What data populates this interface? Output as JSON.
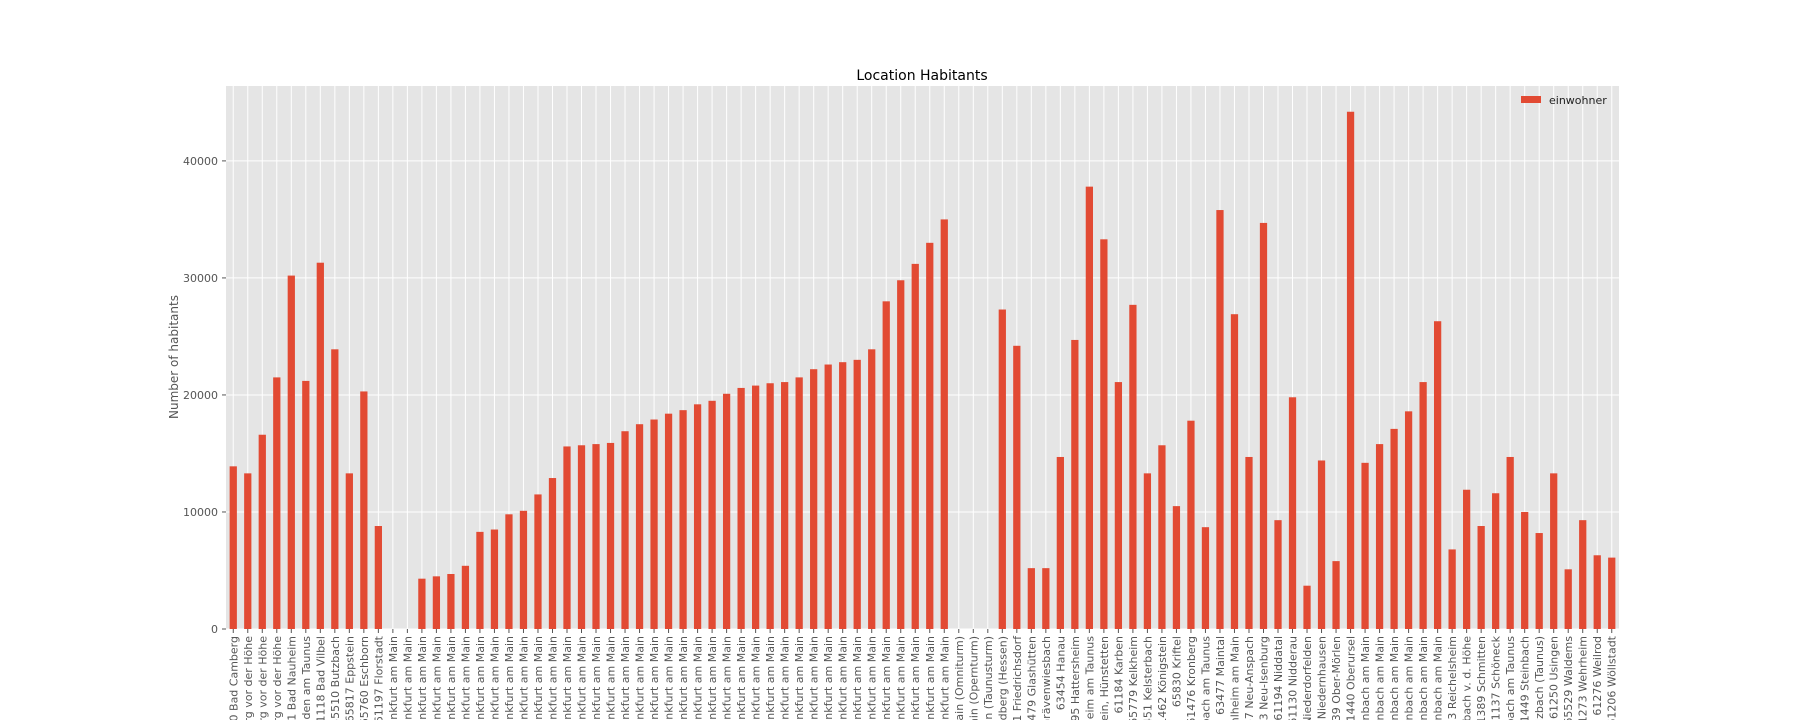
{
  "chart_data": {
    "type": "bar",
    "title": "Location Habitants",
    "ylabel": "Number of habitants",
    "categories": [
      "20 Bad Camberg",
      "urg vor der Höhe",
      "urg vor der Höhe",
      "urg vor der Höhe",
      "31 Bad Nauheim",
      "den am Taunus",
      "61118 Bad Vilbel",
      "35510 Butzbach",
      "65817 Eppstein",
      "65760 Eschborn",
      "61197 Florstadt",
      "ankfurt am Main",
      "ankfurt am Main",
      "ankfurt am Main",
      "ankfurt am Main",
      "ankfurt am Main",
      "ankfurt am Main",
      "ankfurt am Main",
      "ankfurt am Main",
      "ankfurt am Main",
      "ankfurt am Main",
      "ankfurt am Main",
      "ankfurt am Main",
      "ankfurt am Main",
      "ankfurt am Main",
      "ankfurt am Main",
      "ankfurt am Main",
      "ankfurt am Main",
      "ankfurt am Main",
      "ankfurt am Main",
      "ankfurt am Main",
      "ankfurt am Main",
      "ankfurt am Main",
      "ankfurt am Main",
      "ankfurt am Main",
      "ankfurt am Main",
      "ankfurt am Main",
      "ankfurt am Main",
      "ankfurt am Main",
      "ankfurt am Main",
      "ankfurt am Main",
      "ankfurt am Main",
      "ankfurt am Main",
      "ankfurt am Main",
      "ankfurt am Main",
      "ankfurt am Main",
      "ankfurt am Main",
      "ankfurt am Main",
      "ankfurt am Main",
      "ankfurt am Main",
      "Main (Omniturm)",
      "ain (Opernturm)",
      "ain (Taunusturm)",
      "edberg (Hessen)",
      "31 Friedrichsdorf",
      "1479 Glashütten",
      "Grävenwiesbach",
      "63454 Hanau",
      "795 Hattersheim",
      "heim am Taunus",
      "tein, Hünstetten",
      "61184 Karben",
      "65779 Kelkheim",
      "451 Kelsterbach",
      "1462 Königstein",
      "65830 Kriftel",
      "61476 Kronberg",
      "bach am Taunus",
      "63477 Maintal",
      "hlheim am Main",
      "67 Neu-Anspach",
      "63 Neu-Isenburg",
      "61194 Niddatal",
      "61130 Nidderau",
      "Niederdorfelden",
      "7 Niedernhausen",
      "239 Ober-Mörlen",
      "61440 Oberursel",
      "fenbach am Main",
      "fenbach am Main",
      "fenbach am Main",
      "fenbach am Main",
      "fenbach am Main",
      "fenbach am Main",
      "03 Reichelsheim",
      "sbach v. d. Höhe",
      "1389 Schmitten",
      "61137 Schöneck",
      "bach am Taunus",
      "61449 Steinbach",
      "ulzbach (Taunus)",
      "61250 Usingen",
      "65529 Waldems",
      "61273 Wehrheim",
      "61276 Weilrod",
      "61206 Wöllstadt"
    ],
    "series": [
      {
        "name": "einwohner",
        "color": "#E24A33",
        "values": [
          13900,
          13300,
          16600,
          21500,
          30200,
          21200,
          31300,
          23900,
          13300,
          20300,
          8800,
          0,
          0,
          4300,
          4500,
          4700,
          5400,
          8300,
          8500,
          9800,
          10100,
          11500,
          12900,
          15600,
          15700,
          15800,
          15900,
          16900,
          17500,
          17900,
          18400,
          18700,
          19200,
          19500,
          20100,
          20600,
          20800,
          21000,
          21100,
          21500,
          22200,
          22600,
          22800,
          23000,
          23900,
          28000,
          29800,
          31200,
          33000,
          35000,
          0,
          0,
          0,
          27300,
          24200,
          5200,
          5200,
          14700,
          24700,
          37800,
          33300,
          21100,
          27700,
          13300,
          15700,
          10500,
          17800,
          8700,
          35800,
          26900,
          14700,
          34700,
          9300,
          19800,
          3700,
          14400,
          5800,
          44200,
          14200,
          15800,
          17100,
          18600,
          21100,
          26300,
          6800,
          11900,
          8800,
          11600,
          14700,
          10000,
          8200,
          13300,
          5100,
          9300,
          6300,
          6100
        ]
      }
    ],
    "ylim": [
      0,
      46400
    ],
    "yticks": [
      0,
      10000,
      20000,
      30000,
      40000
    ],
    "grid": true,
    "legend": "upper right"
  }
}
